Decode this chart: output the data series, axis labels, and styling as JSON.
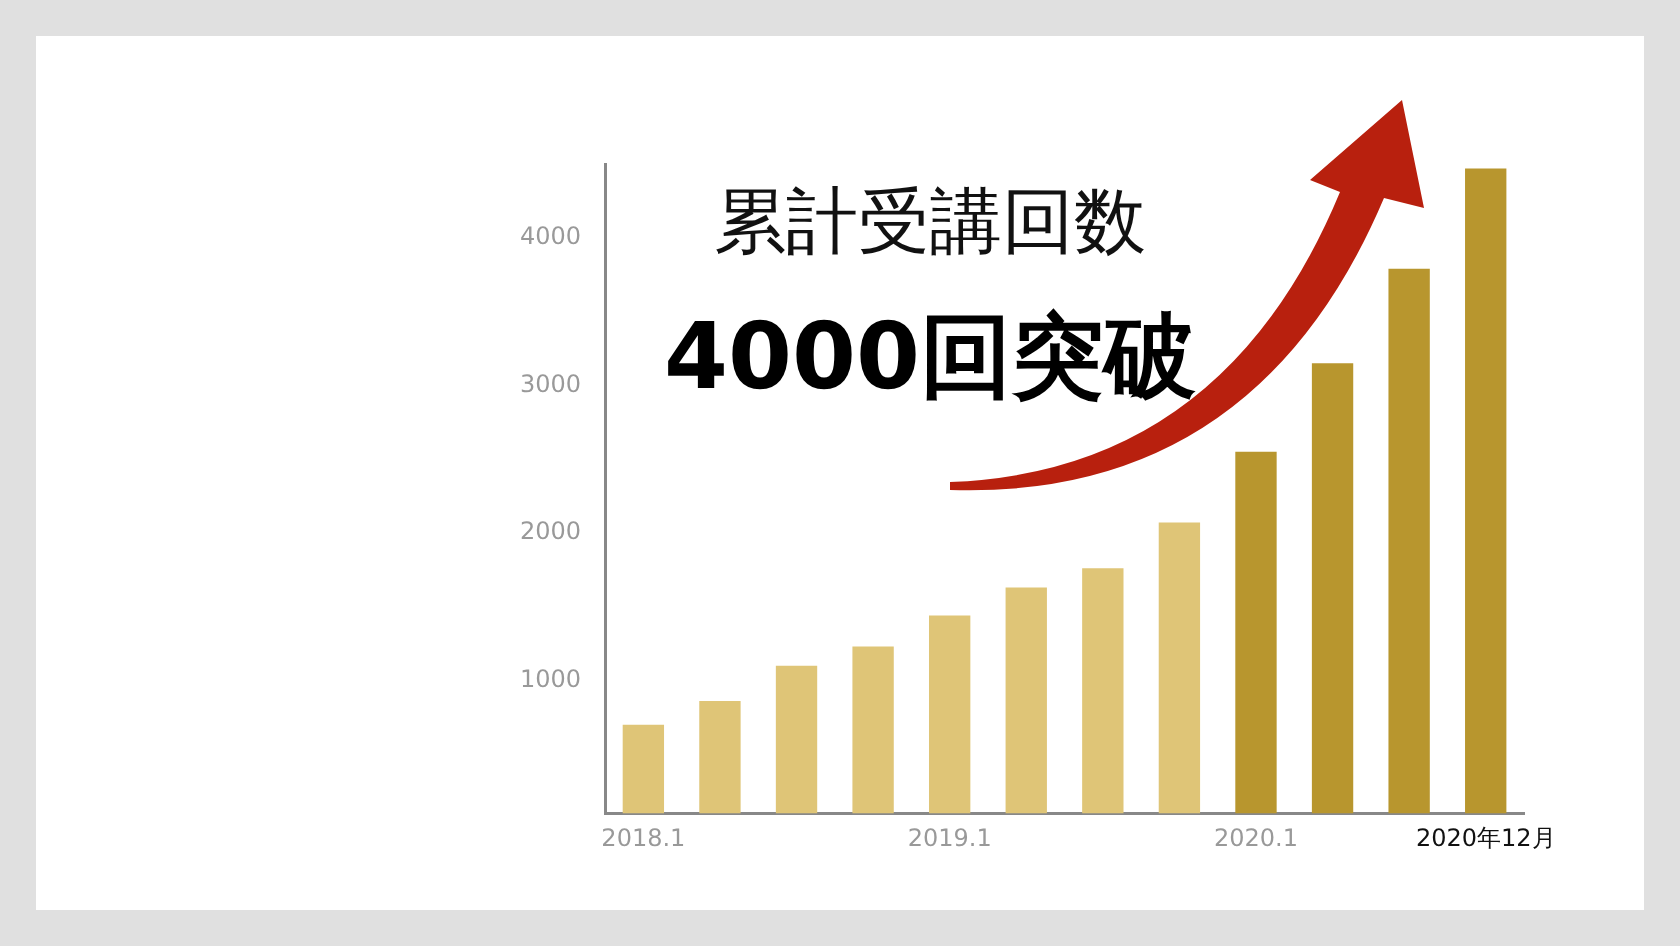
{
  "chart_data": {
    "type": "bar",
    "title": "累計受講回数",
    "subtitle": "4000回突破",
    "categories": [
      "2018.1",
      null,
      null,
      null,
      "2019.1",
      null,
      null,
      null,
      "2020.1",
      null,
      null,
      "2020年12月"
    ],
    "values": [
      700,
      860,
      1100,
      1230,
      1440,
      1630,
      1760,
      2070,
      2550,
      3150,
      3790,
      4470
    ],
    "colors": [
      "#dfc577",
      "#dfc577",
      "#dfc577",
      "#dfc577",
      "#dfc577",
      "#dfc577",
      "#dfc577",
      "#dfc577",
      "#b8962e",
      "#b8962e",
      "#b8962e",
      "#b8962e"
    ],
    "ylim": [
      100,
      4500
    ],
    "yticks": [
      1000,
      2000,
      3000,
      4000
    ],
    "grid": false,
    "legend": false
  }
}
